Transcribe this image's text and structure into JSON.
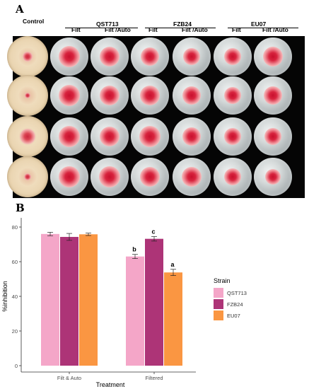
{
  "figure": {
    "panel_a_label": "A",
    "panel_b_label": "B",
    "control_label": "Control",
    "groups": [
      {
        "name": "QST713",
        "sub": [
          "Filt",
          "Filt /Auto"
        ]
      },
      {
        "name": "FZB24",
        "sub": [
          "Filt",
          "Filt /Auto"
        ]
      },
      {
        "name": "EU07",
        "sub": [
          "Filt",
          "Filt /Auto"
        ]
      }
    ]
  },
  "chart_data": {
    "type": "bar",
    "xlabel": "Treatment",
    "ylabel": "%inhibition",
    "categories": [
      "Filt & Auto",
      "Filtered"
    ],
    "ylim": [
      0,
      80
    ],
    "yticks": [
      0,
      20,
      40,
      60,
      80
    ],
    "legend_title": "Strain",
    "legend_position": "right",
    "grid": false,
    "series": [
      {
        "name": "QST713",
        "color": "#f4a6c8",
        "values": [
          76,
          63
        ],
        "errors": [
          1.0,
          1.2
        ],
        "labels": [
          "",
          "b"
        ]
      },
      {
        "name": "FZB24",
        "color": "#ad3477",
        "values": [
          74.3,
          73.2
        ],
        "errors": [
          2.0,
          1.3
        ],
        "labels": [
          "",
          "c"
        ]
      },
      {
        "name": "EU07",
        "color": "#fa9642",
        "values": [
          75.8,
          53.8
        ],
        "errors": [
          0.7,
          1.8
        ],
        "labels": [
          "",
          "a"
        ]
      }
    ]
  }
}
